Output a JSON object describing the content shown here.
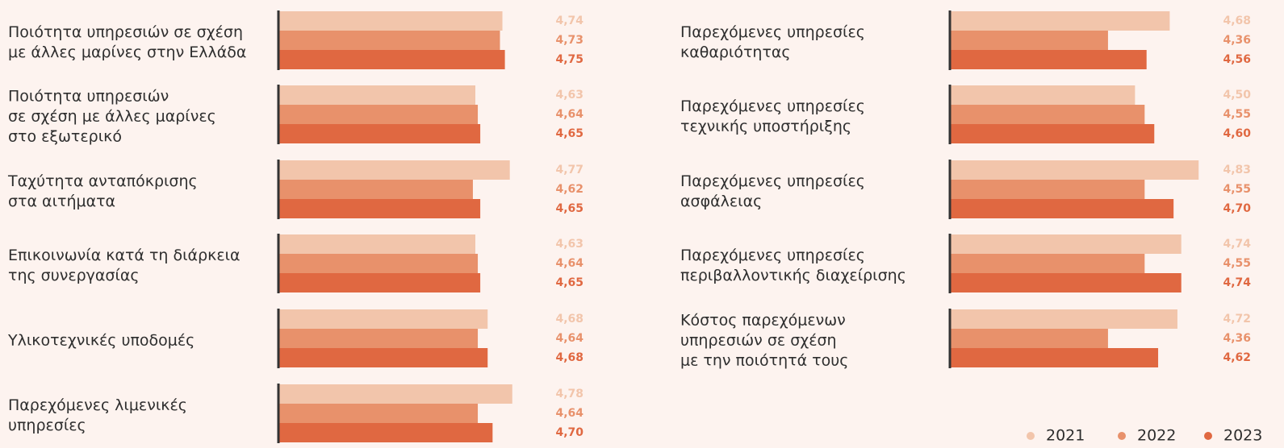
{
  "chart_data": [
    {
      "type": "bar",
      "orientation": "horizontal",
      "categories": [
        "Ποιότητα υπηρεσιών σε σχέση\nμε άλλες μαρίνες στην Ελλάδα",
        "Ποιότητα υπηρεσιών\nσε σχέση με άλλες μαρίνες\nστο εξωτερικό",
        "Ταχύτητα ανταπόκρισης\nστα αιτήματα",
        "Επικοινωνία κατά τη διάρκεια\nτης συνεργασίας",
        "Υλικοτεχνικές υποδομές",
        "Παρεχόμενες λιμενικές\nυπηρεσίες"
      ],
      "xlim": [
        3.83,
        4.83
      ],
      "series": [
        {
          "color": "#f2c5ab",
          "values": [
            4.74,
            4.63,
            4.77,
            4.63,
            4.68,
            4.78
          ],
          "value_labels": [
            "4,74",
            "4,63",
            "4,77",
            "4,63",
            "4,68",
            "4,78"
          ]
        },
        {
          "color": "#e8916b",
          "values": [
            4.73,
            4.64,
            4.62,
            4.64,
            4.64,
            4.64
          ],
          "value_labels": [
            "4,73",
            "4,64",
            "4,62",
            "4,64",
            "4,64",
            "4,64"
          ]
        },
        {
          "color": "#e06841",
          "values": [
            4.75,
            4.65,
            4.65,
            4.65,
            4.68,
            4.7
          ],
          "value_labels": [
            "4,75",
            "4,65",
            "4,65",
            "4,65",
            "4,68",
            "4,70"
          ]
        }
      ]
    },
    {
      "type": "bar",
      "orientation": "horizontal",
      "categories": [
        "Παρεχόμενες υπηρεσίες\nκαθαριότητας",
        "Παρεχόμενες υπηρεσίες\nτεχνικής υποστήριξης",
        "Παρεχόμενες υπηρεσίες\nασφάλειας",
        "Παρεχόμενες υπηρεσίες\nπεριβαλλοντικής διαχείρισης",
        "Κόστος παρεχόμενων\nυπηρεσιών σε σχέση\nμε την ποιότητά τους"
      ],
      "xlim": [
        3.54,
        4.85
      ],
      "legend": "bottom-right",
      "series": [
        {
          "name": "2021",
          "color": "#f2c5ab",
          "values": [
            4.68,
            4.5,
            4.83,
            4.74,
            4.72
          ],
          "value_labels": [
            "4,68",
            "4,50",
            "4,83",
            "4,74",
            "4,72"
          ]
        },
        {
          "name": "2022",
          "color": "#e8916b",
          "values": [
            4.36,
            4.55,
            4.55,
            4.55,
            4.36
          ],
          "value_labels": [
            "4,36",
            "4,55",
            "4,55",
            "4,55",
            "4,36"
          ]
        },
        {
          "name": "2023",
          "color": "#e06841",
          "values": [
            4.56,
            4.6,
            4.7,
            4.74,
            4.62
          ],
          "value_labels": [
            "4,56",
            "4,60",
            "4,70",
            "4,74",
            "4,62"
          ]
        }
      ]
    }
  ]
}
